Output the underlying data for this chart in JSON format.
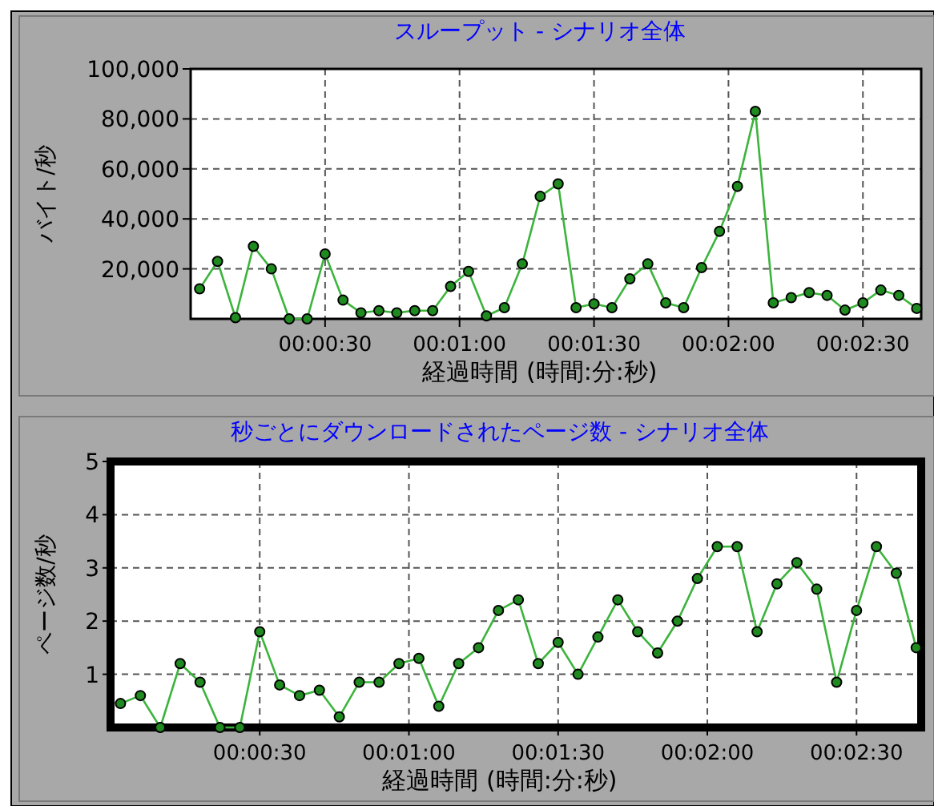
{
  "chart_data": [
    {
      "type": "line",
      "title": "スループット - シナリオ全体",
      "xlabel": "経過時間 (時間:分:秒)",
      "ylabel": "バイト/秒",
      "x": [
        2,
        6,
        10,
        14,
        18,
        22,
        26,
        30,
        34,
        38,
        42,
        46,
        50,
        54,
        58,
        62,
        66,
        70,
        74,
        78,
        82,
        86,
        90,
        94,
        98,
        102,
        106,
        110,
        114,
        118,
        122,
        126,
        130,
        134,
        138,
        142,
        146,
        150,
        154,
        158,
        162
      ],
      "series": [
        {
          "color": "#3cb43c",
          "values": [
            12000,
            23000,
            500,
            29000,
            20000,
            0,
            0,
            26000,
            7500,
            2400,
            3300,
            2400,
            3300,
            3300,
            13000,
            19000,
            1200,
            4500,
            22000,
            49000,
            54000,
            4500,
            6000,
            4500,
            16000,
            22000,
            6400,
            4500,
            20500,
            35000,
            53000,
            83000,
            6400,
            8500,
            10500,
            9400,
            3500,
            6400,
            11500,
            9400,
            4200
          ]
        }
      ],
      "xlim": [
        0,
        163
      ],
      "ylim": [
        0,
        100000
      ],
      "xticks": [
        {
          "value": 30,
          "label": "00:00:30"
        },
        {
          "value": 60,
          "label": "00:01:00"
        },
        {
          "value": 90,
          "label": "00:01:30"
        },
        {
          "value": 120,
          "label": "00:02:00"
        },
        {
          "value": 150,
          "label": "00:02:30"
        }
      ],
      "yticks": [
        {
          "value": 20000,
          "label": "20,000"
        },
        {
          "value": 40000,
          "label": "40,000"
        },
        {
          "value": 60000,
          "label": "60,000"
        },
        {
          "value": 80000,
          "label": "80,000"
        },
        {
          "value": 100000,
          "label": "100,000"
        }
      ],
      "grid": true,
      "marker": "circle"
    },
    {
      "type": "line",
      "title": "秒ごとにダウンロードされたページ数 - シナリオ全体",
      "xlabel": "経過時間 (時間:分:秒)",
      "ylabel": "ページ数/秒",
      "x": [
        2,
        6,
        10,
        14,
        18,
        22,
        26,
        30,
        34,
        38,
        42,
        46,
        50,
        54,
        58,
        62,
        66,
        70,
        74,
        78,
        82,
        86,
        90,
        94,
        98,
        102,
        106,
        110,
        114,
        118,
        122,
        126,
        130,
        134,
        138,
        142,
        146,
        150,
        154,
        158,
        162
      ],
      "series": [
        {
          "color": "#3cb43c",
          "values": [
            0.45,
            0.6,
            0,
            1.2,
            0.85,
            0,
            0,
            1.8,
            0.8,
            0.6,
            0.7,
            0.2,
            0.85,
            0.85,
            1.2,
            1.3,
            0.4,
            1.2,
            1.5,
            2.2,
            2.4,
            1.2,
            1.6,
            1,
            1.7,
            2.4,
            1.8,
            1.4,
            2,
            2.8,
            3.4,
            3.4,
            1.8,
            2.7,
            3.1,
            2.6,
            0.85,
            2.2,
            3.4,
            2.9,
            1.5
          ]
        }
      ],
      "xlim": [
        0,
        163
      ],
      "ylim": [
        0,
        5
      ],
      "xticks": [
        {
          "value": 30,
          "label": "00:00:30"
        },
        {
          "value": 60,
          "label": "00:01:00"
        },
        {
          "value": 90,
          "label": "00:01:30"
        },
        {
          "value": 120,
          "label": "00:02:00"
        },
        {
          "value": 150,
          "label": "00:02:30"
        }
      ],
      "yticks": [
        1,
        2,
        3,
        4,
        5
      ],
      "grid": true,
      "marker": "circle"
    }
  ]
}
